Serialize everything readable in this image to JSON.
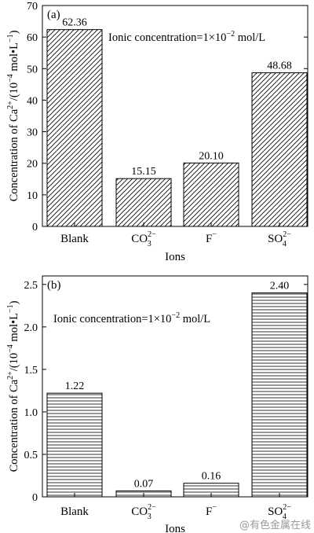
{
  "chart_data": [
    {
      "type": "bar",
      "panel_label": "(a)",
      "annotation": "Ionic concentration=1×10",
      "annotation_exp": "−2",
      "annotation_unit": " mol/L",
      "ylabel": "Concentration of Ca",
      "ylabel_sup": "2+",
      "ylabel_rest": "/(10",
      "ylabel_exp": "−4",
      "ylabel_end": " mol•L",
      "ylabel_exp2": "−1",
      "ylabel_close": ")",
      "xlabel": "Ions",
      "ylim": [
        0,
        70
      ],
      "yticks": [
        0,
        10,
        20,
        30,
        40,
        50,
        60,
        70
      ],
      "ytick_labels": [
        "0",
        "10",
        "20",
        "30",
        "40",
        "50",
        "60",
        "70"
      ],
      "hatch": "diagonal",
      "categories": [
        {
          "base": "Blank",
          "sub": "",
          "sup": ""
        },
        {
          "base": "CO",
          "sub": "3",
          "sup": "2−"
        },
        {
          "base": "F",
          "sub": "",
          "sup": "−"
        },
        {
          "base": "SO",
          "sub": "4",
          "sup": "2−"
        }
      ],
      "values": [
        62.36,
        15.15,
        20.1,
        48.68
      ],
      "value_labels": [
        "62.36",
        "15.15",
        "20.10",
        "48.68"
      ]
    },
    {
      "type": "bar",
      "panel_label": "(b)",
      "annotation": "Ionic concentration=1×10",
      "annotation_exp": "−2",
      "annotation_unit": " mol/L",
      "ylabel": "Concentration of Ca",
      "ylabel_sup": "2+",
      "ylabel_rest": "/(10",
      "ylabel_exp": "−4",
      "ylabel_end": " mol•L",
      "ylabel_exp2": "−1",
      "ylabel_close": ")",
      "xlabel": "Ions",
      "ylim": [
        0,
        2.6
      ],
      "yticks": [
        0,
        0.5,
        1.0,
        1.5,
        2.0,
        2.5
      ],
      "ytick_labels": [
        "0",
        "0.5",
        "1.0",
        "1.5",
        "2.0",
        "2.5"
      ],
      "hatch": "horizontal",
      "categories": [
        {
          "base": "Blank",
          "sub": "",
          "sup": ""
        },
        {
          "base": "CO",
          "sub": "3",
          "sup": "2−"
        },
        {
          "base": "F",
          "sub": "",
          "sup": "−"
        },
        {
          "base": "SO",
          "sub": "4",
          "sup": "2−"
        }
      ],
      "values": [
        1.22,
        0.07,
        0.16,
        2.4
      ],
      "value_labels": [
        "1.22",
        "0.07",
        "0.16",
        "2.40"
      ]
    }
  ],
  "watermark": "@有色金属在线"
}
